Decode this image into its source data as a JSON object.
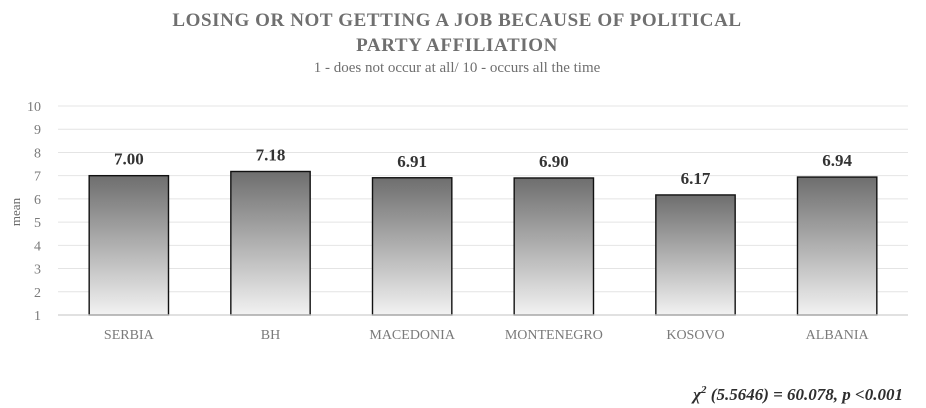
{
  "chart_data": {
    "type": "bar",
    "title_line1": "LOSING OR NOT GETTING A JOB BECAUSE OF POLITICAL",
    "title_line2": "PARTY AFFILIATION",
    "subtitle": "1 - does not occur at all/ 10 - occurs all the time",
    "ylabel": "mean",
    "xlabel": "",
    "ylim": [
      1,
      10
    ],
    "yticks": [
      "1",
      "2",
      "3",
      "4",
      "5",
      "6",
      "7",
      "8",
      "9",
      "10"
    ],
    "categories": [
      "SERBIA",
      "BH",
      "MACEDONIA",
      "MONTENEGRO",
      "KOSOVO",
      "ALBANIA"
    ],
    "values": [
      7.0,
      7.18,
      6.91,
      6.9,
      6.17,
      6.94
    ],
    "value_labels": [
      "7.00",
      "7.18",
      "6.91",
      "6.90",
      "6.17",
      "6.94"
    ],
    "grid": true,
    "bar_gradient": [
      "#6e6e6e",
      "#f2f2f2"
    ],
    "stat_note": {
      "chi": "χ",
      "sup": "2",
      "rest": " (5.5646) = 60.078, p <0.001"
    }
  }
}
